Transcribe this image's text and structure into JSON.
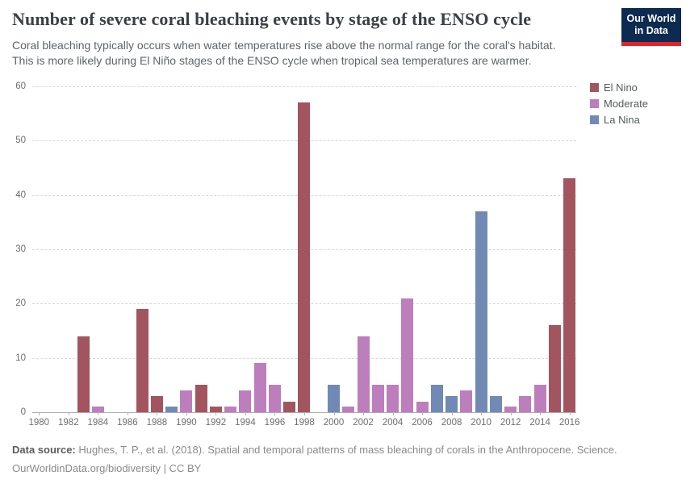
{
  "header": {
    "title": "Number of severe coral bleaching events by stage of the ENSO cycle",
    "subtitle_line1": "Coral bleaching typically occurs when water temperatures rise above the normal range for the coral's habitat.",
    "subtitle_line2": "This is more likely during El Niño stages of the ENSO cycle when tropical sea temperatures are warmer."
  },
  "logo": {
    "line1": "Our World",
    "line2": "in Data",
    "bg_color": "#0d2a50",
    "accent_color": "#e02428"
  },
  "colors": {
    "el_nino": "#a2555f",
    "moderate": "#bc7ebc",
    "la_nina": "#7189b5",
    "grid": "#d9d9d9",
    "axis_line": "#adadad",
    "tick_text": "#6e6e6e"
  },
  "legend": [
    {
      "label": "El Nino",
      "stage": "el_nino"
    },
    {
      "label": "Moderate",
      "stage": "moderate"
    },
    {
      "label": "La Nina",
      "stage": "la_nina"
    }
  ],
  "chart_data": {
    "type": "bar",
    "title": "Number of severe coral bleaching events by stage of the ENSO cycle",
    "xlabel": "",
    "ylabel": "",
    "ylim": [
      0,
      60
    ],
    "y_ticks": [
      0,
      10,
      20,
      30,
      40,
      50,
      60
    ],
    "x_tick_labels": [
      1980,
      1982,
      1984,
      1986,
      1988,
      1990,
      1992,
      1994,
      1996,
      1998,
      2000,
      2002,
      2004,
      2006,
      2008,
      2010,
      2012,
      2014,
      2016
    ],
    "grid": "horizontal-dashed",
    "legend_position": "right",
    "bars": [
      {
        "year": 1980,
        "value": 0,
        "stage": null
      },
      {
        "year": 1981,
        "value": 0,
        "stage": null
      },
      {
        "year": 1982,
        "value": 0,
        "stage": null
      },
      {
        "year": 1983,
        "value": 14,
        "stage": "el_nino"
      },
      {
        "year": 1984,
        "value": 1,
        "stage": "moderate"
      },
      {
        "year": 1985,
        "value": 0,
        "stage": null
      },
      {
        "year": 1986,
        "value": 0,
        "stage": null
      },
      {
        "year": 1987,
        "value": 19,
        "stage": "el_nino"
      },
      {
        "year": 1988,
        "value": 3,
        "stage": "el_nino"
      },
      {
        "year": 1989,
        "value": 1,
        "stage": "la_nina"
      },
      {
        "year": 1990,
        "value": 4,
        "stage": "moderate"
      },
      {
        "year": 1991,
        "value": 5,
        "stage": "el_nino"
      },
      {
        "year": 1992,
        "value": 1,
        "stage": "el_nino"
      },
      {
        "year": 1993,
        "value": 1,
        "stage": "moderate"
      },
      {
        "year": 1994,
        "value": 4,
        "stage": "moderate"
      },
      {
        "year": 1995,
        "value": 9,
        "stage": "moderate"
      },
      {
        "year": 1996,
        "value": 5,
        "stage": "moderate"
      },
      {
        "year": 1997,
        "value": 2,
        "stage": "el_nino"
      },
      {
        "year": 1998,
        "value": 57,
        "stage": "el_nino"
      },
      {
        "year": 1999,
        "value": 0,
        "stage": null
      },
      {
        "year": 2000,
        "value": 5,
        "stage": "la_nina"
      },
      {
        "year": 2001,
        "value": 1,
        "stage": "moderate"
      },
      {
        "year": 2002,
        "value": 14,
        "stage": "moderate"
      },
      {
        "year": 2003,
        "value": 5,
        "stage": "moderate"
      },
      {
        "year": 2004,
        "value": 5,
        "stage": "moderate"
      },
      {
        "year": 2005,
        "value": 21,
        "stage": "moderate"
      },
      {
        "year": 2006,
        "value": 2,
        "stage": "moderate"
      },
      {
        "year": 2007,
        "value": 5,
        "stage": "la_nina"
      },
      {
        "year": 2008,
        "value": 3,
        "stage": "la_nina"
      },
      {
        "year": 2009,
        "value": 4,
        "stage": "moderate"
      },
      {
        "year": 2010,
        "value": 37,
        "stage": "la_nina"
      },
      {
        "year": 2011,
        "value": 3,
        "stage": "la_nina"
      },
      {
        "year": 2012,
        "value": 1,
        "stage": "moderate"
      },
      {
        "year": 2013,
        "value": 3,
        "stage": "moderate"
      },
      {
        "year": 2014,
        "value": 5,
        "stage": "moderate"
      },
      {
        "year": 2015,
        "value": 16,
        "stage": "el_nino"
      },
      {
        "year": 2016,
        "value": 43,
        "stage": "el_nino"
      }
    ]
  },
  "footer": {
    "source_label": "Data source:",
    "source_text": " Hughes, T. P., et al. (2018). Spatial and temporal patterns of mass bleaching of corals in the Anthropocene. Science.",
    "line2": "OurWorldinData.org/biodiversity | CC BY"
  }
}
